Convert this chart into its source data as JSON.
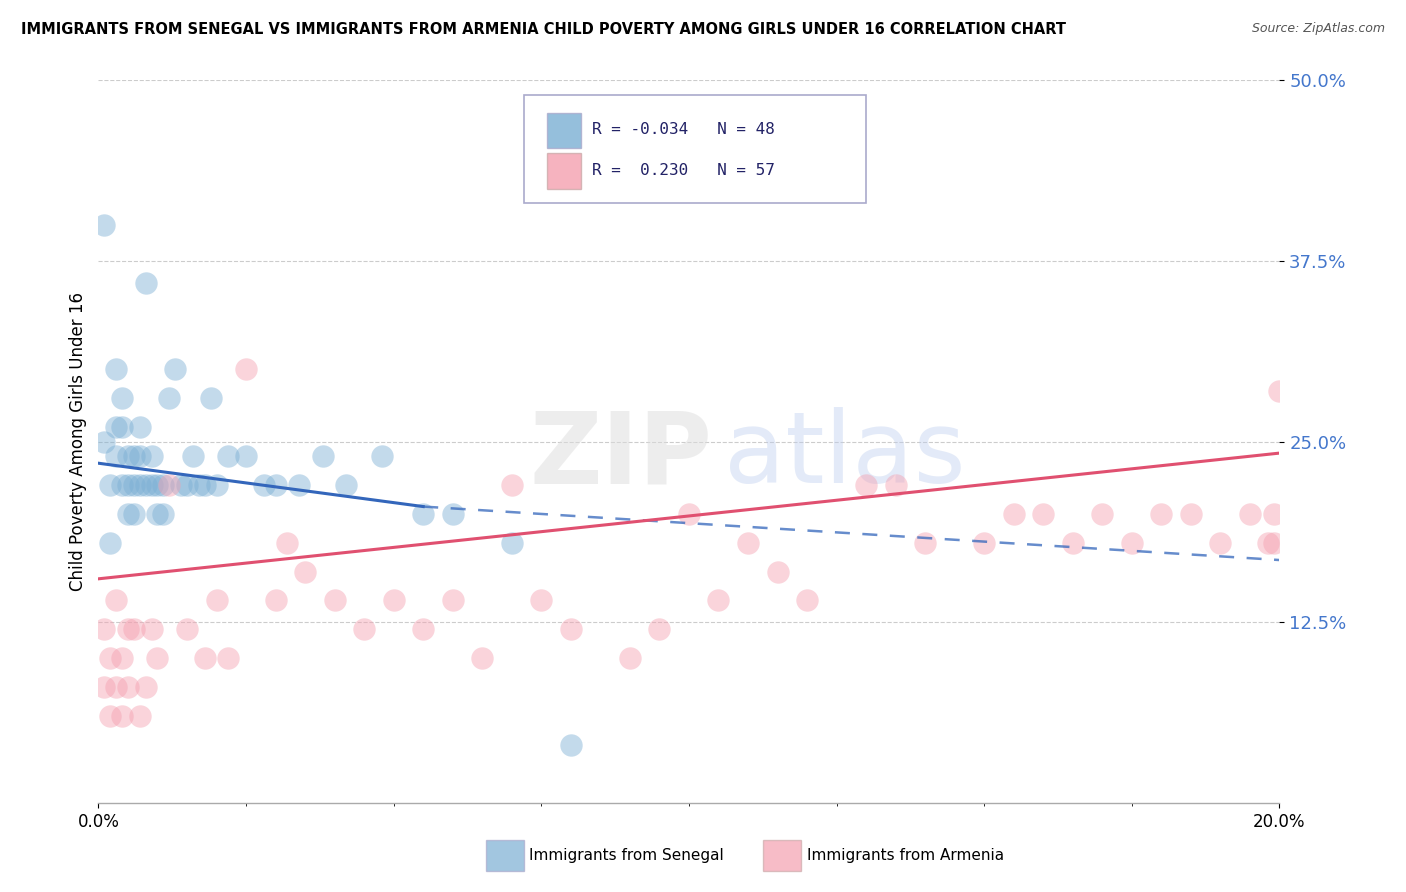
{
  "title": "IMMIGRANTS FROM SENEGAL VS IMMIGRANTS FROM ARMENIA CHILD POVERTY AMONG GIRLS UNDER 16 CORRELATION CHART",
  "source": "Source: ZipAtlas.com",
  "ylabel": "Child Poverty Among Girls Under 16",
  "xlim": [
    0.0,
    0.2
  ],
  "ylim": [
    0.0,
    0.5
  ],
  "xtick_vals": [
    0.0,
    0.2
  ],
  "xtick_labels": [
    "0.0%",
    "20.0%"
  ],
  "ytick_vals": [
    0.125,
    0.25,
    0.375,
    0.5
  ],
  "ytick_labels": [
    "12.5%",
    "25.0%",
    "37.5%",
    "50.0%"
  ],
  "legend_R_senegal": "-0.034",
  "legend_N_senegal": "48",
  "legend_R_armenia": "0.230",
  "legend_N_armenia": "57",
  "senegal_color": "#7BAFD4",
  "armenia_color": "#F4A0B0",
  "senegal_line_color": "#3366BB",
  "armenia_line_color": "#E05070",
  "watermark": "ZIPatlas",
  "senegal_line": [
    [
      0.0,
      0.235
    ],
    [
      0.055,
      0.205
    ]
  ],
  "senegal_dashed_line": [
    [
      0.055,
      0.205
    ],
    [
      0.2,
      0.168
    ]
  ],
  "armenia_line": [
    [
      0.0,
      0.155
    ],
    [
      0.2,
      0.242
    ]
  ],
  "senegal_x": [
    0.001,
    0.001,
    0.002,
    0.002,
    0.003,
    0.003,
    0.003,
    0.004,
    0.004,
    0.004,
    0.005,
    0.005,
    0.005,
    0.006,
    0.006,
    0.006,
    0.007,
    0.007,
    0.007,
    0.008,
    0.008,
    0.009,
    0.009,
    0.01,
    0.01,
    0.011,
    0.011,
    0.012,
    0.013,
    0.014,
    0.015,
    0.016,
    0.017,
    0.018,
    0.019,
    0.02,
    0.022,
    0.025,
    0.028,
    0.03,
    0.034,
    0.038,
    0.042,
    0.048,
    0.055,
    0.06,
    0.07,
    0.08
  ],
  "senegal_y": [
    0.25,
    0.4,
    0.18,
    0.22,
    0.26,
    0.24,
    0.3,
    0.22,
    0.26,
    0.28,
    0.2,
    0.22,
    0.24,
    0.2,
    0.22,
    0.24,
    0.24,
    0.26,
    0.22,
    0.36,
    0.22,
    0.22,
    0.24,
    0.2,
    0.22,
    0.2,
    0.22,
    0.28,
    0.3,
    0.22,
    0.22,
    0.24,
    0.22,
    0.22,
    0.28,
    0.22,
    0.24,
    0.24,
    0.22,
    0.22,
    0.22,
    0.24,
    0.22,
    0.24,
    0.2,
    0.2,
    0.18,
    0.04
  ],
  "armenia_x": [
    0.001,
    0.001,
    0.002,
    0.002,
    0.003,
    0.003,
    0.004,
    0.004,
    0.005,
    0.005,
    0.006,
    0.007,
    0.008,
    0.009,
    0.01,
    0.012,
    0.015,
    0.018,
    0.02,
    0.022,
    0.025,
    0.03,
    0.032,
    0.035,
    0.04,
    0.045,
    0.05,
    0.055,
    0.06,
    0.065,
    0.07,
    0.075,
    0.08,
    0.09,
    0.095,
    0.1,
    0.105,
    0.11,
    0.115,
    0.12,
    0.13,
    0.135,
    0.14,
    0.15,
    0.155,
    0.16,
    0.165,
    0.17,
    0.175,
    0.18,
    0.185,
    0.19,
    0.195,
    0.198,
    0.199,
    0.199,
    0.2
  ],
  "armenia_y": [
    0.12,
    0.08,
    0.06,
    0.1,
    0.14,
    0.08,
    0.1,
    0.06,
    0.12,
    0.08,
    0.12,
    0.06,
    0.08,
    0.12,
    0.1,
    0.22,
    0.12,
    0.1,
    0.14,
    0.1,
    0.3,
    0.14,
    0.18,
    0.16,
    0.14,
    0.12,
    0.14,
    0.12,
    0.14,
    0.1,
    0.22,
    0.14,
    0.12,
    0.1,
    0.12,
    0.2,
    0.14,
    0.18,
    0.16,
    0.14,
    0.22,
    0.22,
    0.18,
    0.18,
    0.2,
    0.2,
    0.18,
    0.2,
    0.18,
    0.2,
    0.2,
    0.18,
    0.2,
    0.18,
    0.18,
    0.2,
    0.285
  ]
}
